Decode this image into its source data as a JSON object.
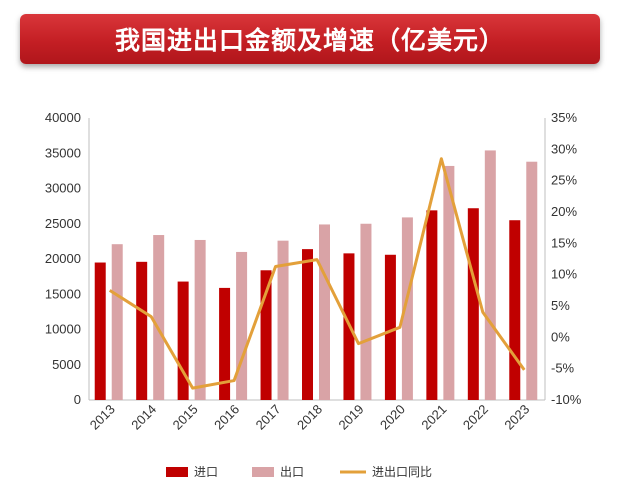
{
  "banner": {
    "title": "我国进出口金额及增速（亿美元）"
  },
  "colors": {
    "import": "#c00000",
    "export": "#d9a3a6",
    "yoy": "#e3a03a",
    "banner": "#c41f24"
  },
  "chart_data": {
    "type": "bar",
    "categories": [
      "2013",
      "2014",
      "2015",
      "2016",
      "2017",
      "2018",
      "2019",
      "2020",
      "2021",
      "2022",
      "2023"
    ],
    "series": [
      {
        "name": "进口",
        "type": "bar",
        "axis": "left",
        "values": [
          19500,
          19600,
          16800,
          15900,
          18400,
          21400,
          20800,
          20600,
          26900,
          27200,
          25500
        ]
      },
      {
        "name": "出口",
        "type": "bar",
        "axis": "left",
        "values": [
          22100,
          23400,
          22700,
          21000,
          22600,
          24900,
          25000,
          25900,
          33200,
          35400,
          33800
        ]
      },
      {
        "name": "进出口同比",
        "type": "line",
        "axis": "right",
        "values": [
          7.5,
          3.3,
          -8.1,
          -6.9,
          11.3,
          12.4,
          -1.0,
          1.6,
          28.5,
          4.0,
          -5.2
        ]
      }
    ],
    "ylim": [
      0,
      40000
    ],
    "yticks": [
      "0",
      "5000",
      "10000",
      "15000",
      "20000",
      "25000",
      "30000",
      "35000",
      "40000"
    ],
    "y2lim": [
      -10,
      35
    ],
    "y2ticks": [
      "-10%",
      "-5%",
      "0%",
      "5%",
      "10%",
      "15%",
      "20%",
      "25%",
      "30%",
      "35%"
    ],
    "legend": [
      "进口",
      "出口",
      "进出口同比"
    ],
    "legend_position": "bottom",
    "grid": false
  }
}
